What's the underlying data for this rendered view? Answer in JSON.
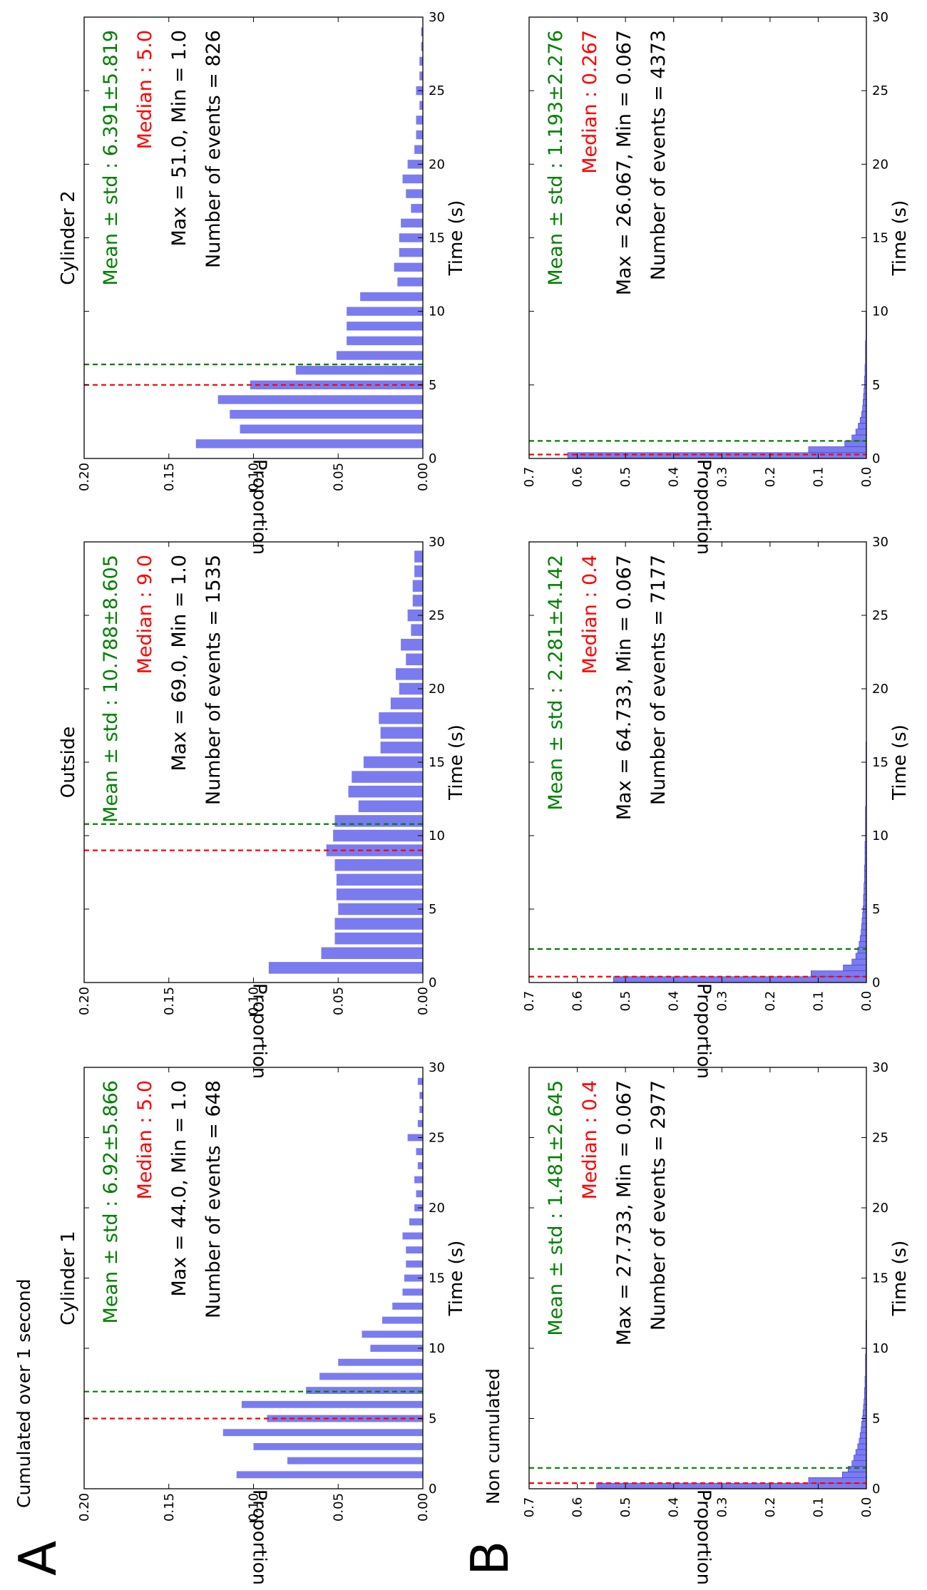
{
  "panels": {
    "A": {
      "letter": "A",
      "title": "Cumulated over 1 second"
    },
    "B": {
      "letter": "B",
      "title": "Non cumulated"
    }
  },
  "colors": {
    "bar": "#7b7bf0",
    "mean": "#008000",
    "median": "#ff0000",
    "text": "#000000"
  },
  "chart_data": [
    {
      "type": "bar",
      "panel": "A",
      "title": "Cylinder 1",
      "xlabel": "Time (s)",
      "ylabel": "Proportion",
      "xlim": [
        0,
        30
      ],
      "ylim": [
        0,
        0.2
      ],
      "xticks": [
        0,
        5,
        10,
        15,
        20,
        25,
        30
      ],
      "yticks": [
        0.0,
        0.05,
        0.1,
        0.15,
        0.2
      ],
      "ytick_labels": [
        "0.00",
        "0.05",
        "0.10",
        "0.15",
        "0.20"
      ],
      "bin_width": 1,
      "bar_fraction": 0.5,
      "x": [
        1,
        2,
        3,
        4,
        5,
        6,
        7,
        8,
        9,
        10,
        11,
        12,
        13,
        14,
        15,
        16,
        17,
        18,
        19,
        20,
        21,
        22,
        23,
        24,
        25,
        26,
        27,
        28,
        29
      ],
      "values": [
        0.11,
        0.08,
        0.1,
        0.118,
        0.092,
        0.107,
        0.069,
        0.061,
        0.05,
        0.031,
        0.036,
        0.024,
        0.018,
        0.012,
        0.011,
        0.01,
        0.01,
        0.012,
        0.008,
        0.005,
        0.004,
        0.005,
        0.003,
        0.004,
        0.009,
        0.003,
        0.002,
        0.002,
        0.003
      ],
      "mean": 6.92,
      "median": 5.0,
      "annotations": {
        "mean": "Mean ± std : 6.92±5.866",
        "median": "Median : 5.0",
        "maxmin": "Max = 44.0, Min = 1.0",
        "events": "Number of events = 648"
      }
    },
    {
      "type": "bar",
      "panel": "A",
      "title": "Outside",
      "xlabel": "Time (s)",
      "ylabel": "Proportion",
      "xlim": [
        0,
        30
      ],
      "ylim": [
        0,
        0.2
      ],
      "xticks": [
        0,
        5,
        10,
        15,
        20,
        25,
        30
      ],
      "yticks": [
        0.0,
        0.05,
        0.1,
        0.15,
        0.2
      ],
      "ytick_labels": [
        "0.00",
        "0.05",
        "0.10",
        "0.15",
        "0.20"
      ],
      "bin_width": 1,
      "bar_fraction": 0.8,
      "x": [
        1,
        2,
        3,
        4,
        5,
        6,
        7,
        8,
        9,
        10,
        11,
        12,
        13,
        14,
        15,
        16,
        17,
        18,
        19,
        20,
        21,
        22,
        23,
        24,
        25,
        26,
        27,
        28,
        29
      ],
      "values": [
        0.091,
        0.06,
        0.052,
        0.052,
        0.05,
        0.051,
        0.051,
        0.052,
        0.057,
        0.053,
        0.052,
        0.038,
        0.044,
        0.042,
        0.035,
        0.025,
        0.025,
        0.026,
        0.019,
        0.014,
        0.016,
        0.01,
        0.013,
        0.007,
        0.009,
        0.006,
        0.006,
        0.005,
        0.005
      ],
      "mean": 10.788,
      "median": 9.0,
      "annotations": {
        "mean": "Mean ± std : 10.788±8.605",
        "median": "Median : 9.0",
        "maxmin": "Max = 69.0, Min = 1.0",
        "events": "Number of events = 1535"
      }
    },
    {
      "type": "bar",
      "panel": "A",
      "title": "Cylinder 2",
      "xlabel": "Time (s)",
      "ylabel": "Proportion",
      "xlim": [
        0,
        30
      ],
      "ylim": [
        0,
        0.2
      ],
      "xticks": [
        0,
        5,
        10,
        15,
        20,
        25,
        30
      ],
      "yticks": [
        0.0,
        0.05,
        0.1,
        0.15,
        0.2
      ],
      "ytick_labels": [
        "0.00",
        "0.05",
        "0.10",
        "0.15",
        "0.20"
      ],
      "bin_width": 1,
      "bar_fraction": 0.6,
      "x": [
        1,
        2,
        3,
        4,
        5,
        6,
        7,
        8,
        9,
        10,
        11,
        12,
        13,
        14,
        15,
        16,
        17,
        18,
        19,
        20,
        21,
        22,
        23,
        24,
        25,
        26,
        27,
        28,
        29
      ],
      "values": [
        0.134,
        0.108,
        0.114,
        0.121,
        0.102,
        0.075,
        0.051,
        0.045,
        0.045,
        0.045,
        0.037,
        0.015,
        0.017,
        0.014,
        0.014,
        0.013,
        0.007,
        0.01,
        0.012,
        0.009,
        0.005,
        0.004,
        0.004,
        0.002,
        0.004,
        0.002,
        0.002,
        0.001,
        0.001
      ],
      "mean": 6.391,
      "median": 5.0,
      "annotations": {
        "mean": "Mean ± std : 6.391±5.819",
        "median": "Median : 5.0",
        "maxmin": "Max = 51.0, Min = 1.0",
        "events": "Number of events = 826"
      }
    },
    {
      "type": "bar",
      "panel": "B",
      "title": "",
      "xlabel": "Time (s)",
      "ylabel": "Proportion",
      "xlim": [
        0,
        30
      ],
      "ylim": [
        0,
        0.7
      ],
      "xticks": [
        0,
        5,
        10,
        15,
        20,
        25,
        30
      ],
      "xtick_labels": [
        "0",
        "5",
        "10",
        "15",
        "20",
        "25",
        "30"
      ],
      "yticks": [
        0.0,
        0.1,
        0.2,
        0.3,
        0.4,
        0.5,
        0.6,
        0.7
      ],
      "ytick_labels": [
        "0.0",
        "0.1",
        "0.2",
        "0.3",
        "0.4",
        "0.5",
        "0.6",
        "0.7"
      ],
      "bin_width": 0.4,
      "bar_fraction": 1.0,
      "x": [
        0.2,
        0.6,
        1.0,
        1.4,
        1.8,
        2.2,
        2.6,
        3.0,
        3.4,
        3.8,
        4.2,
        4.6,
        5.0,
        5.4,
        5.8,
        6.2,
        6.6,
        7.0,
        7.4,
        7.8,
        8.2,
        8.6,
        9.0,
        9.4,
        9.8,
        10.2,
        10.6,
        11.0,
        11.4,
        11.8
      ],
      "values": [
        0.56,
        0.12,
        0.05,
        0.038,
        0.03,
        0.026,
        0.022,
        0.018,
        0.015,
        0.013,
        0.011,
        0.01,
        0.008,
        0.007,
        0.006,
        0.005,
        0.004,
        0.004,
        0.003,
        0.003,
        0.002,
        0.002,
        0.002,
        0.002,
        0.001,
        0.001,
        0.001,
        0.001,
        0.001,
        0.001
      ],
      "mean": 1.481,
      "median": 0.4,
      "annotations": {
        "mean": "Mean ± std : 1.481±2.645",
        "median": "Median : 0.4",
        "maxmin": "Max = 27.733, Min = 0.067",
        "events": "Number of events = 2977"
      }
    },
    {
      "type": "bar",
      "panel": "B",
      "title": "",
      "xlabel": "Time (s)",
      "ylabel": "Proportion",
      "xlim": [
        0,
        30
      ],
      "ylim": [
        0,
        0.7
      ],
      "xticks": [
        0,
        5,
        10,
        15,
        20,
        25,
        30
      ],
      "yticks": [
        0.0,
        0.1,
        0.2,
        0.3,
        0.4,
        0.5,
        0.6,
        0.7
      ],
      "ytick_labels": [
        "0.0",
        "0.1",
        "0.2",
        "0.3",
        "0.4",
        "0.5",
        "0.6",
        "0.7"
      ],
      "bin_width": 0.4,
      "bar_fraction": 1.0,
      "x": [
        0.2,
        0.6,
        1.0,
        1.4,
        1.8,
        2.2,
        2.6,
        3.0,
        3.4,
        3.8,
        4.2,
        4.6,
        5.0,
        5.4,
        5.8,
        6.2,
        6.6,
        7.0,
        7.4,
        7.8,
        8.2,
        8.6,
        9.0,
        9.4,
        9.8,
        10.2,
        10.6,
        11.0,
        11.4,
        11.8,
        12.2,
        12.6,
        13.0,
        13.4,
        13.8,
        14.2,
        14.6,
        15.0,
        15.4,
        15.8,
        16.2
      ],
      "values": [
        0.525,
        0.115,
        0.048,
        0.03,
        0.022,
        0.018,
        0.015,
        0.013,
        0.011,
        0.01,
        0.009,
        0.008,
        0.007,
        0.006,
        0.006,
        0.005,
        0.005,
        0.004,
        0.004,
        0.004,
        0.003,
        0.003,
        0.003,
        0.003,
        0.002,
        0.002,
        0.002,
        0.002,
        0.002,
        0.002,
        0.001,
        0.001,
        0.001,
        0.001,
        0.001,
        0.001,
        0.001,
        0.001,
        0.001,
        0.001,
        0.001
      ],
      "mean": 2.281,
      "median": 0.4,
      "annotations": {
        "mean": "Mean ± std : 2.281±4.142",
        "median": "Median : 0.4",
        "maxmin": "Max = 64.733, Min = 0.067",
        "events": "Number of events = 7177"
      }
    },
    {
      "type": "bar",
      "panel": "B",
      "title": "",
      "xlabel": "Time (s)",
      "ylabel": "Proportion",
      "xlim": [
        0,
        30
      ],
      "ylim": [
        0,
        0.7
      ],
      "xticks": [
        0,
        5,
        10,
        15,
        20,
        25,
        30
      ],
      "yticks": [
        0.0,
        0.1,
        0.2,
        0.3,
        0.4,
        0.5,
        0.6,
        0.7
      ],
      "ytick_labels": [
        "0.0",
        "0.1",
        "0.2",
        "0.3",
        "0.4",
        "0.5",
        "0.6",
        "0.7"
      ],
      "bin_width": 0.4,
      "bar_fraction": 1.0,
      "x": [
        0.2,
        0.6,
        1.0,
        1.4,
        1.8,
        2.2,
        2.6,
        3.0,
        3.4,
        3.8,
        4.2,
        4.6,
        5.0,
        5.4,
        5.8,
        6.2,
        6.6,
        7.0,
        7.4,
        7.8,
        8.2,
        8.6,
        9.0,
        9.4,
        9.8
      ],
      "values": [
        0.62,
        0.12,
        0.045,
        0.03,
        0.022,
        0.017,
        0.013,
        0.01,
        0.008,
        0.007,
        0.006,
        0.005,
        0.004,
        0.004,
        0.003,
        0.003,
        0.002,
        0.002,
        0.002,
        0.002,
        0.001,
        0.001,
        0.001,
        0.001,
        0.001
      ],
      "mean": 1.193,
      "median": 0.267,
      "annotations": {
        "mean": "Mean ± std : 1.193±2.276",
        "median": "Median : 0.267",
        "maxmin": "Max = 26.067, Min = 0.067",
        "events": "Number of events = 4373"
      }
    }
  ]
}
